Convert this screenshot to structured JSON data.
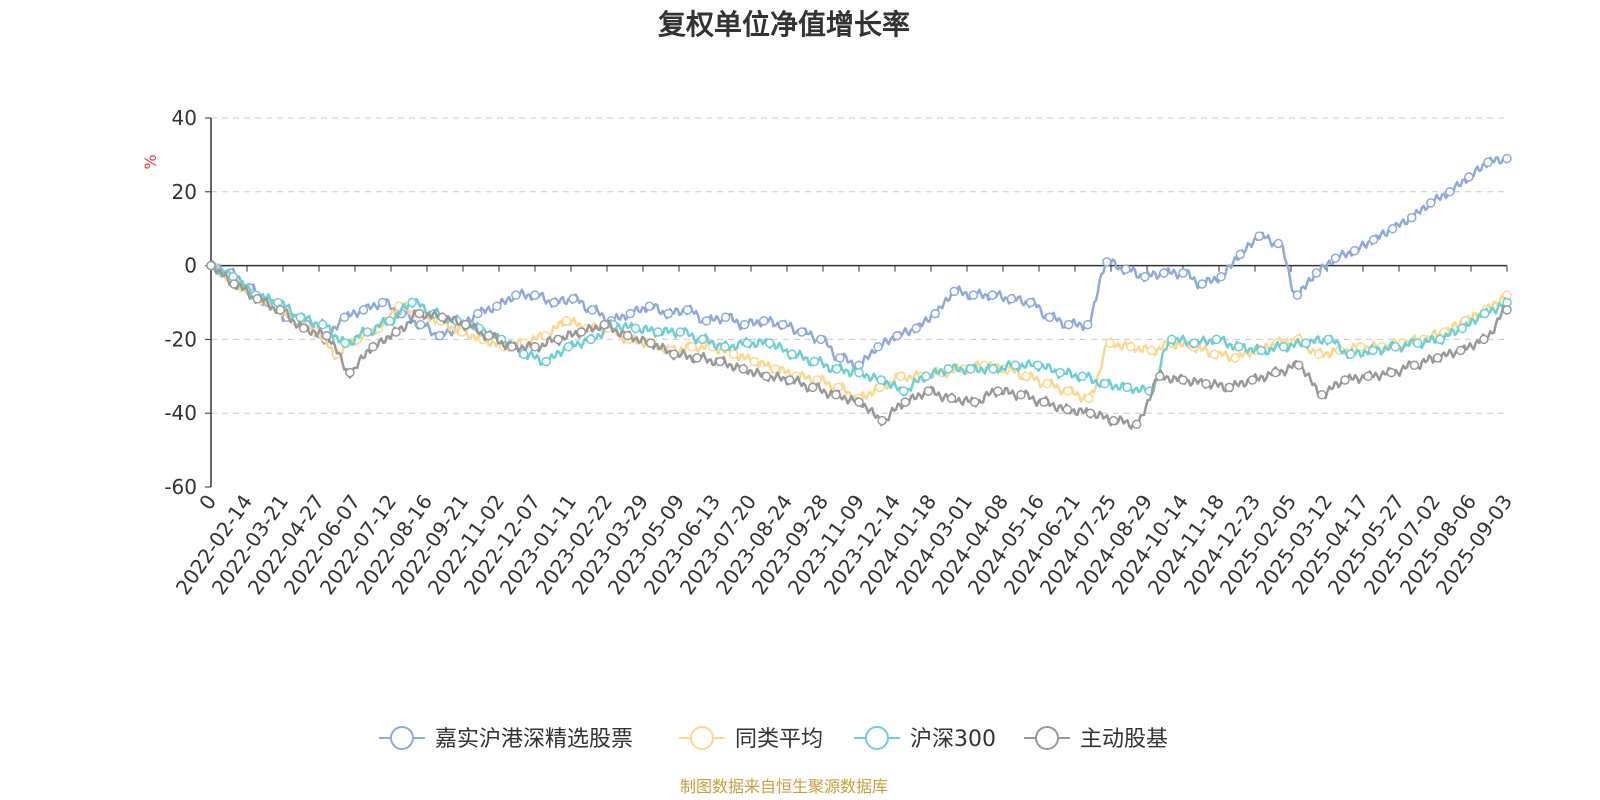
{
  "chart_data": {
    "type": "line",
    "title": "复权单位净值增长率",
    "ylabel": "%",
    "ylim": [
      -60,
      40
    ],
    "yticks": [
      40,
      20,
      0,
      -20,
      -40,
      -60
    ],
    "grid": true,
    "legend_position": "bottom",
    "x_origin_label": "0",
    "x_tick_labels": [
      "2022-02-14",
      "2022-03-21",
      "2022-04-27",
      "2022-06-07",
      "2022-07-12",
      "2022-08-16",
      "2022-09-21",
      "2022-11-02",
      "2022-12-07",
      "2023-01-11",
      "2023-02-22",
      "2023-03-29",
      "2023-05-09",
      "2023-06-13",
      "2023-07-20",
      "2023-08-24",
      "2023-09-28",
      "2023-11-09",
      "2023-12-14",
      "2024-01-18",
      "2024-03-01",
      "2024-04-08",
      "2024-05-16",
      "2024-06-21",
      "2024-07-25",
      "2024-08-29",
      "2024-10-14",
      "2024-11-18",
      "2024-12-23",
      "2025-02-05",
      "2025-03-12",
      "2025-04-17",
      "2025-05-27",
      "2025-07-02",
      "2025-08-06",
      "2025-09-03"
    ],
    "series": [
      {
        "name": "嘉实沪港深精选股票",
        "color": "#8eaadb",
        "values": [
          0,
          -2,
          -6,
          -10,
          -14,
          -16,
          -20,
          -14,
          -12,
          -10,
          -13,
          -16,
          -19,
          -17,
          -13,
          -11,
          -8,
          -8,
          -10,
          -9,
          -12,
          -15,
          -13,
          -11,
          -13,
          -12,
          -15,
          -14,
          -16,
          -15,
          -16,
          -18,
          -20,
          -25,
          -27,
          -22,
          -19,
          -17,
          -13,
          -7,
          -8,
          -8,
          -9,
          -10,
          -14,
          -16,
          -16,
          1,
          -1,
          -3,
          -2,
          -2,
          -5,
          -3,
          3,
          8,
          6,
          -8,
          -2,
          2,
          4,
          7,
          10,
          13,
          17,
          20,
          24,
          28,
          29
        ]
      },
      {
        "name": "同类平均",
        "color": "#fbd88d",
        "values": [
          0,
          -4,
          -8,
          -11,
          -15,
          -18,
          -24,
          -20,
          -17,
          -11,
          -13,
          -15,
          -18,
          -20,
          -22,
          -21,
          -19,
          -15,
          -17,
          -17,
          -20,
          -21,
          -23,
          -22,
          -22,
          -24,
          -26,
          -28,
          -30,
          -31,
          -33,
          -36,
          -33,
          -30,
          -30,
          -29,
          -28,
          -27,
          -28,
          -30,
          -32,
          -34,
          -36,
          -21,
          -22,
          -23,
          -21,
          -22,
          -24,
          -25,
          -23,
          -21,
          -20,
          -24,
          -23,
          -22,
          -22,
          -21,
          -20,
          -18,
          -15,
          -12,
          -8
        ]
      },
      {
        "name": "沪深300",
        "color": "#6ecfd3",
        "values": [
          0,
          -3,
          -8,
          -10,
          -14,
          -16,
          -21,
          -18,
          -15,
          -10,
          -13,
          -15,
          -17,
          -20,
          -24,
          -26,
          -22,
          -20,
          -16,
          -17,
          -18,
          -18,
          -20,
          -22,
          -21,
          -21,
          -24,
          -26,
          -28,
          -29,
          -31,
          -34,
          -30,
          -28,
          -28,
          -28,
          -27,
          -27,
          -29,
          -30,
          -32,
          -33,
          -34,
          -20,
          -21,
          -20,
          -22,
          -23,
          -22,
          -21,
          -20,
          -24,
          -23,
          -22,
          -21,
          -20,
          -17,
          -13,
          -10
        ]
      },
      {
        "name": "主动股基",
        "color": "#999999",
        "values": [
          0,
          -5,
          -9,
          -12,
          -17,
          -19,
          -29,
          -22,
          -18,
          -13,
          -14,
          -16,
          -19,
          -22,
          -22,
          -20,
          -18,
          -16,
          -19,
          -21,
          -24,
          -25,
          -26,
          -28,
          -30,
          -31,
          -33,
          -35,
          -37,
          -42,
          -37,
          -34,
          -36,
          -37,
          -34,
          -35,
          -37,
          -39,
          -40,
          -42,
          -43,
          -30,
          -31,
          -32,
          -33,
          -31,
          -29,
          -27,
          -35,
          -31,
          -30,
          -29,
          -27,
          -25,
          -23,
          -20,
          -12
        ]
      }
    ],
    "source_note": "制图数据来自恒生聚源数据库"
  }
}
